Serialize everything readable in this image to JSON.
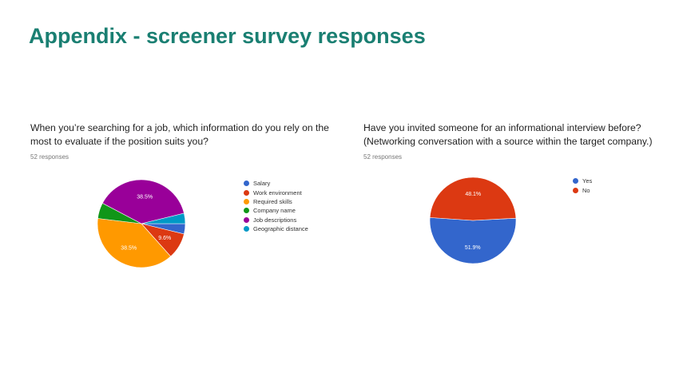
{
  "slide": {
    "title": "Appendix - screener survey responses"
  },
  "chart_data": [
    {
      "type": "pie",
      "title": "When you’re searching for a job, which information do you rely on the most to evaluate if the position suits you?",
      "subtitle": "52 responses",
      "legend_position": "right",
      "categories": [
        "Salary",
        "Work environment",
        "Required skills",
        "Company name",
        "Job descriptions",
        "Geographic distance"
      ],
      "values": [
        3.8,
        9.6,
        38.5,
        5.8,
        38.5,
        3.8
      ],
      "colors": [
        "#3366cc",
        "#dc3912",
        "#ff9900",
        "#109618",
        "#990099",
        "#0099c6"
      ],
      "slice_labels": [
        "",
        "9.6%",
        "38.5%",
        "",
        "38.5%",
        ""
      ]
    },
    {
      "type": "pie",
      "title": "Have you invited someone for an informational interview before? (Networking conversation with a source within the target company.)",
      "subtitle": "52 responses",
      "legend_position": "right",
      "categories": [
        "Yes",
        "No"
      ],
      "values": [
        51.9,
        48.1
      ],
      "colors": [
        "#3366cc",
        "#dc3912"
      ],
      "slice_labels": [
        "51.9%",
        "48.1%"
      ]
    }
  ]
}
